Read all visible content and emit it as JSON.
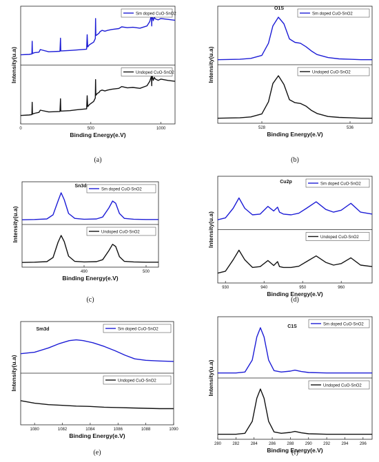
{
  "chart_data": [
    {
      "id": "a",
      "type": "line",
      "caption": "(a)",
      "title": "",
      "xlabel": "Binding Energy(e.V)",
      "ylabel": "Intensity(u.a)",
      "xlim": [
        0,
        1100
      ],
      "xticks": [
        0,
        500,
        1000
      ],
      "series": [
        {
          "name": "Sm doped CuO-SnO2",
          "color": "#1c1cd6",
          "panel": "top",
          "x": [
            0,
            60,
            80,
            82,
            84,
            100,
            130,
            140,
            200,
            280,
            284,
            286,
            290,
            350,
            400,
            470,
            474,
            478,
            490,
            520,
            532,
            534,
            536,
            545,
            560,
            565,
            580,
            600,
            620,
            650,
            700,
            720,
            760,
            800,
            850,
            900,
            920,
            932,
            934,
            936,
            945,
            952,
            960,
            980,
            1000,
            1050,
            1100
          ],
          "y": [
            0.14,
            0.15,
            0.16,
            0.45,
            0.17,
            0.19,
            0.2,
            0.26,
            0.21,
            0.22,
            0.52,
            0.23,
            0.23,
            0.24,
            0.25,
            0.27,
            0.6,
            0.32,
            0.37,
            0.43,
            0.51,
            0.97,
            0.58,
            0.6,
            0.64,
            0.67,
            0.7,
            0.68,
            0.7,
            0.72,
            0.74,
            0.78,
            0.76,
            0.77,
            0.75,
            0.8,
            0.9,
            1.05,
            0.8,
            1.08,
            0.92,
            1.0,
            0.96,
            0.94,
            0.97,
            0.95,
            0.93
          ]
        },
        {
          "name": "Undoped CuO-SnO2",
          "color": "#111111",
          "panel": "bottom",
          "x": [
            0,
            60,
            80,
            82,
            84,
            100,
            130,
            140,
            200,
            280,
            284,
            286,
            290,
            350,
            400,
            470,
            474,
            478,
            490,
            520,
            532,
            534,
            536,
            545,
            560,
            565,
            580,
            600,
            620,
            650,
            700,
            720,
            760,
            800,
            850,
            900,
            920,
            932,
            934,
            936,
            945,
            952,
            960,
            980,
            1000,
            1050,
            1100
          ],
          "y": [
            0.1,
            0.11,
            0.12,
            0.4,
            0.13,
            0.15,
            0.17,
            0.22,
            0.18,
            0.19,
            0.48,
            0.2,
            0.2,
            0.21,
            0.23,
            0.25,
            0.55,
            0.3,
            0.35,
            0.42,
            0.5,
            0.92,
            0.56,
            0.6,
            0.63,
            0.66,
            0.68,
            0.66,
            0.68,
            0.7,
            0.72,
            0.76,
            0.73,
            0.74,
            0.72,
            0.78,
            0.88,
            1.0,
            0.78,
            1.03,
            0.9,
            0.97,
            0.93,
            0.9,
            0.93,
            0.9,
            0.88
          ]
        }
      ]
    },
    {
      "id": "b",
      "type": "line",
      "caption": "(b)",
      "title": "O1S",
      "xlabel": "Binding Energy(e.V)",
      "ylabel": "Intensity(u.a)",
      "xlim": [
        524,
        538
      ],
      "xticks": [
        528,
        536
      ],
      "series": [
        {
          "name": "Sm doped CuO-SnO2",
          "color": "#1c1cd6",
          "panel": "top",
          "x": [
            524,
            526,
            527,
            528,
            528.6,
            529,
            529.5,
            530,
            530.5,
            531,
            531.5,
            532,
            532.5,
            533,
            534,
            535,
            536,
            537,
            538
          ],
          "y": [
            0.02,
            0.03,
            0.05,
            0.12,
            0.4,
            0.8,
            1.0,
            0.85,
            0.5,
            0.42,
            0.4,
            0.32,
            0.22,
            0.14,
            0.07,
            0.04,
            0.03,
            0.02,
            0.02
          ]
        },
        {
          "name": "Undoped CuO-SnO2",
          "color": "#111111",
          "panel": "bottom",
          "x": [
            524,
            526,
            527,
            528,
            528.6,
            529,
            529.5,
            530,
            530.5,
            531,
            531.5,
            532,
            532.5,
            533,
            534,
            535,
            536,
            537,
            538
          ],
          "y": [
            0.02,
            0.03,
            0.05,
            0.12,
            0.4,
            0.82,
            1.0,
            0.8,
            0.45,
            0.38,
            0.36,
            0.3,
            0.2,
            0.13,
            0.06,
            0.04,
            0.03,
            0.02,
            0.02
          ]
        }
      ]
    },
    {
      "id": "c",
      "type": "line",
      "caption": "(c)",
      "title": "Sn3d",
      "xlabel": "Binding Energy(e.V)",
      "ylabel": "Intensity(u.a)",
      "xlim": [
        480,
        502
      ],
      "xticks": [
        490,
        500
      ],
      "series": [
        {
          "name": "Sm doped CuO-SnO2",
          "color": "#1c1cd6",
          "panel": "top",
          "x": [
            480,
            482,
            484,
            485,
            485.8,
            486.3,
            486.8,
            487.5,
            488.5,
            490,
            492,
            493,
            494,
            494.6,
            495.1,
            495.7,
            496.5,
            498,
            500,
            502
          ],
          "y": [
            0.02,
            0.03,
            0.05,
            0.2,
            0.7,
            1.0,
            0.75,
            0.25,
            0.07,
            0.04,
            0.05,
            0.12,
            0.45,
            0.7,
            0.62,
            0.25,
            0.07,
            0.04,
            0.03,
            0.03
          ]
        },
        {
          "name": "Undoped CuO-SnO2",
          "color": "#111111",
          "panel": "bottom",
          "x": [
            480,
            482,
            484,
            485,
            485.8,
            486.3,
            486.8,
            487.5,
            488.5,
            490,
            492,
            493,
            494,
            494.6,
            495.1,
            495.7,
            496.5,
            498,
            500,
            502
          ],
          "y": [
            0.02,
            0.03,
            0.05,
            0.2,
            0.75,
            1.0,
            0.78,
            0.25,
            0.06,
            0.04,
            0.05,
            0.12,
            0.45,
            0.68,
            0.6,
            0.23,
            0.06,
            0.04,
            0.03,
            0.03
          ]
        }
      ]
    },
    {
      "id": "d",
      "type": "line",
      "caption": "(d)",
      "title": "Cu2p",
      "xlabel": "Binding Energy(e.V)",
      "ylabel": "Intensity(u.a)",
      "xlim": [
        928,
        968
      ],
      "xticks": [
        930,
        940,
        950,
        960
      ],
      "series": [
        {
          "name": "Sm doped CuO-SnO2",
          "color": "#1c1cd6",
          "panel": "top",
          "x": [
            928,
            930,
            932,
            933.5,
            935,
            937,
            939,
            941,
            942.5,
            943.5,
            944,
            945,
            947,
            949,
            951,
            953.5,
            956,
            958,
            960,
            962.5,
            965,
            968
          ],
          "y": [
            0.15,
            0.2,
            0.45,
            0.72,
            0.45,
            0.28,
            0.3,
            0.5,
            0.38,
            0.48,
            0.35,
            0.3,
            0.28,
            0.32,
            0.45,
            0.62,
            0.42,
            0.35,
            0.4,
            0.58,
            0.35,
            0.3
          ]
        },
        {
          "name": "Undoped CuO-SnO2",
          "color": "#111111",
          "panel": "bottom",
          "x": [
            928,
            930,
            932,
            933.5,
            935,
            937,
            939,
            941,
            942.5,
            943.5,
            944,
            945,
            947,
            949,
            951,
            953.5,
            956,
            958,
            960,
            962.5,
            965,
            968
          ],
          "y": [
            0.15,
            0.2,
            0.5,
            0.75,
            0.5,
            0.3,
            0.32,
            0.48,
            0.35,
            0.45,
            0.32,
            0.3,
            0.3,
            0.33,
            0.45,
            0.6,
            0.43,
            0.36,
            0.4,
            0.55,
            0.36,
            0.32
          ]
        }
      ]
    },
    {
      "id": "e",
      "type": "line",
      "caption": "(e)",
      "title": "Sm3d",
      "xlabel": "Binding Energy(e.V)",
      "ylabel": "Intensity(u.a)",
      "xlim": [
        1079,
        1090
      ],
      "xticks": [
        1080,
        1082,
        1084,
        1086,
        1088,
        1090
      ],
      "series": [
        {
          "name": "Sm doped CuO-SnO2",
          "color": "#1c1cd6",
          "panel": "top",
          "x": [
            1079,
            1080,
            1081,
            1081.8,
            1082.5,
            1083,
            1083.5,
            1084.2,
            1085,
            1085.8,
            1086.5,
            1087.2,
            1088,
            1089,
            1090
          ],
          "y": [
            0.42,
            0.46,
            0.58,
            0.7,
            0.78,
            0.8,
            0.78,
            0.72,
            0.62,
            0.5,
            0.38,
            0.28,
            0.24,
            0.22,
            0.21
          ]
        },
        {
          "name": "Undoped CuO-SnO2",
          "color": "#111111",
          "panel": "bottom",
          "x": [
            1079,
            1080,
            1081,
            1082,
            1083,
            1084,
            1085,
            1086,
            1087,
            1088,
            1089,
            1090
          ],
          "y": [
            0.55,
            0.48,
            0.44,
            0.42,
            0.4,
            0.39,
            0.37,
            0.36,
            0.35,
            0.34,
            0.33,
            0.33
          ]
        }
      ]
    },
    {
      "id": "f",
      "type": "line",
      "caption": "(f)",
      "title": "C1S",
      "xlabel": "Binding Energy(e.V)",
      "ylabel": "Intensity(u.a)",
      "xlim": [
        280,
        297
      ],
      "xticks": [
        280,
        282,
        284,
        286,
        288,
        290,
        292,
        294,
        296
      ],
      "series": [
        {
          "name": "Sm doped CuO-SnO2",
          "color": "#1c1cd6",
          "panel": "top",
          "x": [
            280,
            282,
            283,
            283.8,
            284.3,
            284.7,
            285.1,
            285.6,
            286.2,
            287,
            288,
            288.5,
            289.2,
            290,
            292,
            294,
            297
          ],
          "y": [
            0.02,
            0.02,
            0.04,
            0.3,
            0.8,
            1.0,
            0.8,
            0.3,
            0.07,
            0.04,
            0.06,
            0.08,
            0.05,
            0.03,
            0.02,
            0.02,
            0.02
          ]
        },
        {
          "name": "Undoped CuO-SnO2",
          "color": "#111111",
          "panel": "bottom",
          "x": [
            280,
            282,
            283,
            283.8,
            284.3,
            284.7,
            285.1,
            285.6,
            286.2,
            287,
            288,
            288.5,
            289.2,
            290,
            292,
            294,
            297
          ],
          "y": [
            0.02,
            0.02,
            0.04,
            0.3,
            0.8,
            1.0,
            0.8,
            0.3,
            0.07,
            0.04,
            0.06,
            0.08,
            0.05,
            0.03,
            0.02,
            0.02,
            0.02
          ]
        }
      ]
    }
  ]
}
